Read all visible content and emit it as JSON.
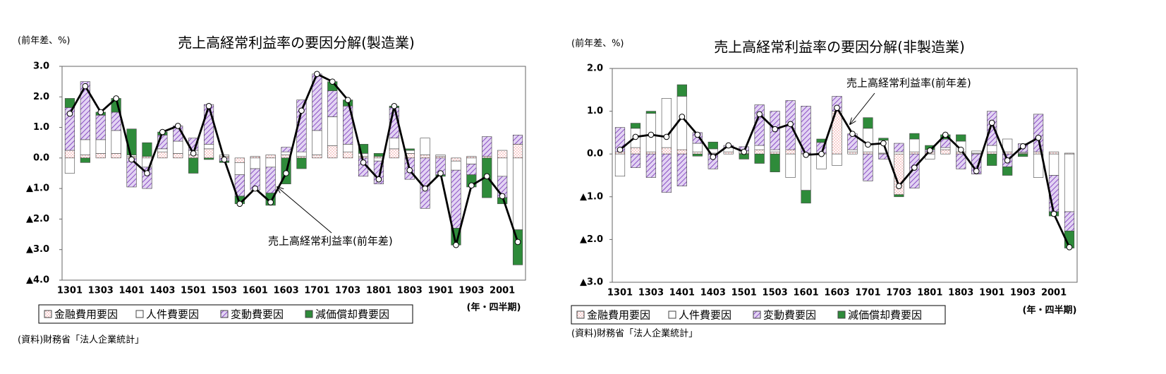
{
  "chart_data": [
    {
      "type": "stacked_bar_line",
      "title": "売上高経常利益率の要因分解(製造業)",
      "y_unit": "(前年差、%)",
      "x_label": "(年・四半期)",
      "source": "(資料)財務省「法人企業統計」",
      "categories": [
        "1301",
        null,
        "1303",
        null,
        "1401",
        null,
        "1403",
        null,
        "1501",
        null,
        "1503",
        null,
        "1601",
        null,
        "1603",
        null,
        "1701",
        null,
        "1703",
        null,
        "1801",
        null,
        "1803",
        null,
        "1901",
        null,
        "1903",
        null,
        "2001",
        null
      ],
      "ylim": [
        -4,
        3
      ],
      "yticks": [
        {
          "value": 3,
          "label": "3.0"
        },
        {
          "value": 2,
          "label": "2.0"
        },
        {
          "value": 1,
          "label": "1.0"
        },
        {
          "value": 0,
          "label": "0.0"
        },
        {
          "value": -1,
          "label": "▲1.0"
        },
        {
          "value": -2,
          "label": "▲2.0"
        },
        {
          "value": -3,
          "label": "▲3.0"
        },
        {
          "value": -4,
          "label": "▲4.0"
        }
      ],
      "grid": false,
      "series": [
        {
          "name": "金融費用要因",
          "color": "#f4a6a6",
          "pattern": "dots",
          "values": [
            0.25,
            0.1,
            0.15,
            0.15,
            0.05,
            0.05,
            0.2,
            0.15,
            0.1,
            0.3,
            0.05,
            -0.15,
            0.05,
            0.1,
            0.1,
            0.05,
            0.1,
            0.4,
            0.2,
            0.05,
            0.05,
            0.3,
            0.15,
            0.1,
            0.05,
            -0.1,
            0.05,
            0.05,
            0.25,
            0.45
          ]
        },
        {
          "name": "人件費要因",
          "color": "#ffffff",
          "pattern": "solid",
          "values": [
            -0.5,
            0.5,
            0.45,
            0.75,
            0.05,
            -0.3,
            0.1,
            0.4,
            0.15,
            0.15,
            0.05,
            -0.4,
            -0.35,
            -0.3,
            0.1,
            0.15,
            0.8,
            0.95,
            0.25,
            0.1,
            -0.1,
            0.35,
            0.1,
            0.55,
            0.05,
            -0.3,
            -0.2,
            0,
            -0.6,
            -2.35
          ]
        },
        {
          "name": "変動費要因",
          "color": "#9966cc",
          "pattern": "hatch",
          "values": [
            1.4,
            1.9,
            0.8,
            0.6,
            -0.95,
            -0.7,
            0.45,
            0.5,
            0.4,
            1.3,
            -0.1,
            -0.7,
            -0.7,
            -0.85,
            0.15,
            1.7,
            1.85,
            0.85,
            1.25,
            -0.6,
            -0.75,
            1.0,
            -0.7,
            -1.65,
            -0.55,
            -1.9,
            -0.35,
            0.65,
            -0.7,
            0.3
          ]
        },
        {
          "name": "減価償却費要因",
          "color": "#2e8b3a",
          "pattern": "solid",
          "values": [
            0.3,
            -0.15,
            0.1,
            0.45,
            0.85,
            0.45,
            0.1,
            0,
            -0.5,
            -0.05,
            -0.05,
            -0.25,
            0,
            -0.4,
            -0.85,
            -0.35,
            0,
            0.3,
            0.2,
            0.3,
            0.1,
            0.05,
            0.05,
            0,
            -0.05,
            -0.55,
            -0.4,
            -1.3,
            -0.2,
            -1.15
          ]
        }
      ],
      "line": {
        "name": "売上高経常利益率(前年差)",
        "color": "#000000",
        "values": [
          1.45,
          2.35,
          1.5,
          1.95,
          -0.05,
          -0.5,
          0.85,
          1.05,
          0.15,
          1.7,
          -0.05,
          -1.5,
          -1.0,
          -1.45,
          -0.5,
          1.55,
          2.75,
          2.5,
          1.9,
          -0.15,
          -0.7,
          1.7,
          -0.4,
          -1.0,
          -0.5,
          -2.85,
          -0.9,
          -0.6,
          -1.25,
          -2.75
        ]
      }
    },
    {
      "type": "stacked_bar_line",
      "title": "売上高経常利益率の要因分解(非製造業)",
      "y_unit": "(前年差、%)",
      "x_label": "(年・四半期)",
      "source": "(資料)財務省「法人企業統計」",
      "categories": [
        "1301",
        null,
        "1303",
        null,
        "1401",
        null,
        "1403",
        null,
        "1501",
        null,
        "1503",
        null,
        "1601",
        null,
        "1603",
        null,
        "1701",
        null,
        "1703",
        null,
        "1801",
        null,
        "1803",
        null,
        "1901",
        null,
        "1903",
        null,
        "2001",
        null
      ],
      "ylim": [
        -3,
        2
      ],
      "yticks": [
        {
          "value": 2,
          "label": "2.0"
        },
        {
          "value": 1,
          "label": "1.0"
        },
        {
          "value": 0,
          "label": "0.0"
        },
        {
          "value": -1,
          "label": "▲1.0"
        },
        {
          "value": -2,
          "label": "▲2.0"
        },
        {
          "value": -3,
          "label": "▲3.0"
        }
      ],
      "grid": false,
      "series": [
        {
          "name": "金融費用要因",
          "color": "#f4a6a6",
          "pattern": "dots",
          "values": [
            0.05,
            0.15,
            0.05,
            0.15,
            0.1,
            0.05,
            0.02,
            0.05,
            0.02,
            0.1,
            0.05,
            0.1,
            0.02,
            0.02,
            1.0,
            0.05,
            0.05,
            0.02,
            -0.95,
            0.05,
            0.05,
            0.1,
            0.05,
            0.02,
            0.05,
            0.05,
            0.02,
            0.05,
            0.05,
            0.02
          ]
        },
        {
          "name": "人件費要因",
          "color": "#ffffff",
          "pattern": "solid",
          "values": [
            -0.52,
            0.45,
            0.9,
            1.15,
            1.25,
            0.2,
            0.1,
            0.1,
            0.05,
            0.1,
            0.05,
            -0.55,
            -0.85,
            -0.35,
            -0.27,
            0.05,
            0.55,
            0.3,
            0.05,
            0.3,
            -0.12,
            0.05,
            0.25,
            0.05,
            0.15,
            0.3,
            0.02,
            -0.55,
            -0.5,
            -1.35
          ]
        },
        {
          "name": "変動費要因",
          "color": "#9966cc",
          "pattern": "hatch",
          "values": [
            0.57,
            -0.32,
            -0.55,
            -0.9,
            -0.75,
            0.25,
            -0.35,
            0.05,
            0.1,
            0.95,
            0.9,
            1.15,
            1.1,
            0.25,
            0.35,
            0.37,
            -0.63,
            -0.12,
            0.2,
            -0.8,
            0.05,
            0.2,
            -0.35,
            -0.47,
            0.8,
            -0.3,
            0.2,
            0.88,
            -0.85,
            -0.45
          ]
        },
        {
          "name": "減価償却費要因",
          "color": "#2e8b3a",
          "pattern": "solid",
          "values": [
            0,
            0.12,
            0.05,
            0,
            0.27,
            -0.05,
            0.16,
            0,
            -0.12,
            -0.22,
            -0.42,
            0,
            -0.3,
            0.08,
            0,
            0,
            0.25,
            0.05,
            -0.05,
            0.13,
            0.1,
            0.1,
            0.15,
            0,
            -0.27,
            -0.2,
            -0.06,
            0,
            -0.1,
            -0.4
          ]
        }
      ],
      "line": {
        "name": "売上高経常利益率(前年差)",
        "color": "#000000",
        "values": [
          0.1,
          0.4,
          0.45,
          0.4,
          0.87,
          0.45,
          -0.07,
          0.2,
          0.05,
          0.93,
          0.58,
          0.7,
          -0.02,
          0.0,
          1.08,
          0.47,
          0.22,
          0.25,
          -0.75,
          -0.32,
          0.08,
          0.45,
          0.1,
          -0.4,
          0.73,
          -0.15,
          0.18,
          0.38,
          -1.4,
          -2.18
        ]
      }
    }
  ]
}
